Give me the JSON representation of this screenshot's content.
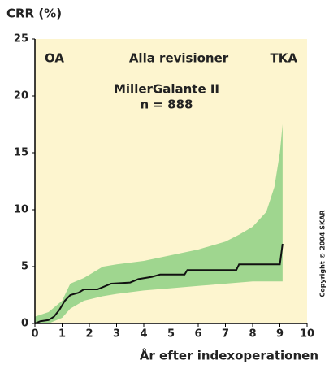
{
  "chart_data": {
    "type": "line",
    "y_axis_title": "CRR (%)",
    "x_axis_title": "År efter indexoperationen",
    "annotations": {
      "left": "OA",
      "center": "Alla revisioner",
      "right": "TKA",
      "title": "MillerGalante II",
      "subtitle": "n = 888",
      "copyright": "Copyright © 2004 SKAR"
    },
    "left_color": "#1a7fc1",
    "background": "#fdf5cf",
    "xlim": [
      0,
      10
    ],
    "xticks": [
      0,
      1,
      2,
      3,
      4,
      5,
      6,
      7,
      8,
      9,
      10
    ],
    "ylim": [
      0,
      25
    ],
    "yticks": [
      0,
      5,
      10,
      15,
      20,
      25
    ],
    "grid": false,
    "band": {
      "color": "#9fd68f",
      "x": [
        0,
        0.5,
        1,
        1.3,
        1.8,
        2.5,
        3,
        4,
        5,
        6,
        7,
        7.5,
        8,
        8.5,
        8.8,
        9,
        9.1
      ],
      "upper": [
        0.6,
        1.0,
        2.0,
        3.5,
        4.0,
        5.0,
        5.2,
        5.5,
        6.0,
        6.5,
        7.2,
        7.8,
        8.5,
        9.8,
        12,
        15,
        17.5
      ],
      "lower": [
        0,
        0,
        0.5,
        1.3,
        2.0,
        2.4,
        2.6,
        2.9,
        3.1,
        3.3,
        3.5,
        3.6,
        3.7,
        3.7,
        3.7,
        3.7,
        3.7
      ]
    },
    "series": [
      {
        "color": "#111111",
        "x": [
          0,
          0.2,
          0.5,
          0.7,
          0.9,
          1.1,
          1.3,
          1.6,
          1.8,
          2.3,
          2.5,
          2.8,
          3.5,
          3.8,
          4.3,
          4.6,
          5.5,
          5.6,
          7.4,
          7.5,
          9.0,
          9.1
        ],
        "values": [
          0,
          0.2,
          0.3,
          0.6,
          1.2,
          2.0,
          2.5,
          2.7,
          3.0,
          3.0,
          3.2,
          3.5,
          3.6,
          3.9,
          4.1,
          4.3,
          4.3,
          4.7,
          4.7,
          5.2,
          5.2,
          7.0
        ]
      }
    ]
  }
}
